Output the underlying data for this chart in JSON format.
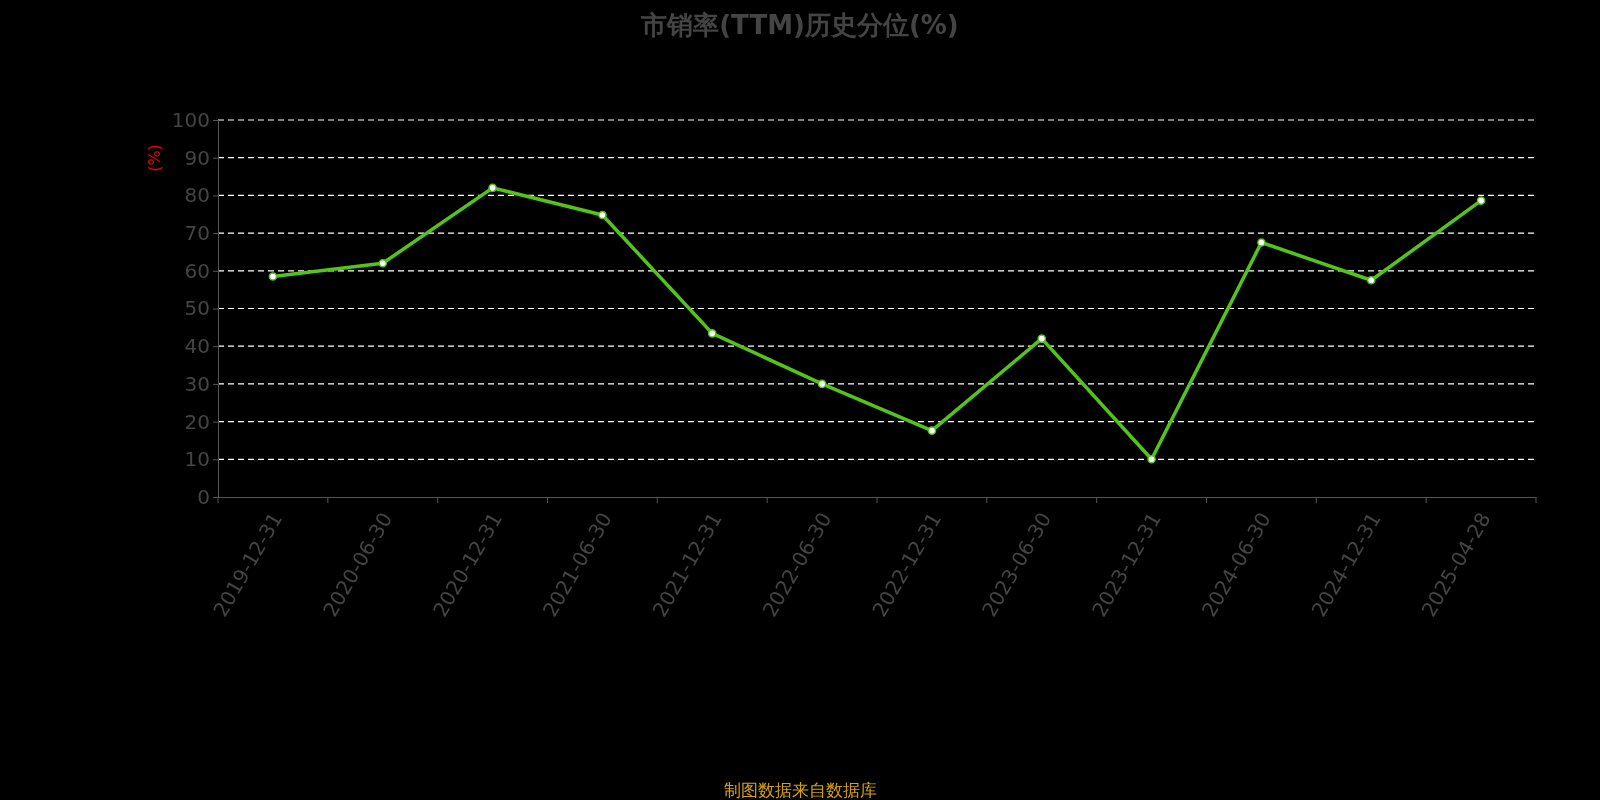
{
  "chart_data": {
    "type": "line",
    "title": "市销率(TTM)历史分位(%)",
    "ylabel": "(%)",
    "categories": [
      "2019-12-31",
      "2020-06-30",
      "2020-12-31",
      "2021-06-30",
      "2021-12-31",
      "2022-06-30",
      "2022-12-31",
      "2023-06-30",
      "2023-12-31",
      "2024-06-30",
      "2024-12-31",
      "2025-04-28"
    ],
    "series": [
      {
        "color": "#52c41a",
        "values": [
          58.5,
          62,
          82,
          74.8,
          43.4,
          30,
          17.6,
          42,
          10,
          67.5,
          57.5,
          78.6
        ]
      }
    ],
    "ylim": [
      0,
      100
    ],
    "yticks": [
      0,
      10,
      20,
      30,
      40,
      50,
      60,
      70,
      80,
      90,
      100
    ],
    "grid": "y",
    "marker": "circle",
    "line_style": "solid",
    "annotations": [
      "制图数据来自数据库"
    ]
  }
}
